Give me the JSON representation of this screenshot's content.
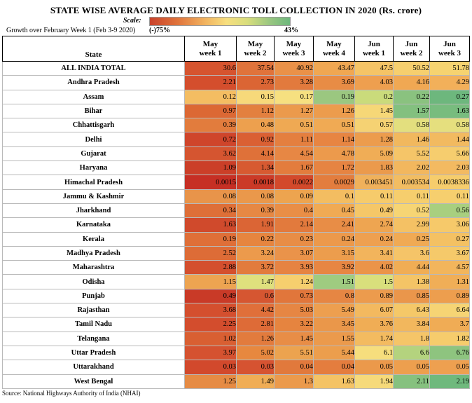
{
  "title": "STATE WISE AVERAGE DAILY ELECTRONIC TOLL COLLECTION IN 2020 (Rs. crore)",
  "scale": {
    "label": "Scale:",
    "growth_label": "Growth over February Week 1 (Feb 3-9 2020)",
    "min_label": "(-)75%",
    "max_label": "43%",
    "colors": {
      "low": "#c9422b",
      "mid": "#f7df7f",
      "high": "#6db77d"
    }
  },
  "table": {
    "state_header": "State",
    "columns": [
      {
        "line1": "May",
        "line2": "week 1"
      },
      {
        "line1": "May",
        "line2": "week 2"
      },
      {
        "line1": "May",
        "line2": "week 3"
      },
      {
        "line1": "May",
        "line2": "week  4"
      },
      {
        "line1": "Jun",
        "line2": "week 1"
      },
      {
        "line1": "Jun",
        "line2": "week 2"
      },
      {
        "line1": "Jun",
        "line2": "week 3"
      }
    ],
    "rows": [
      {
        "state": "ALL INDIA TOTAL",
        "values": [
          "30.6",
          "37.54",
          "40.92",
          "43.47",
          "47.5",
          "50.52",
          "51.78"
        ],
        "colors": [
          "#d6542f",
          "#e0733b",
          "#ea9148",
          "#f0a752",
          "#f5c466",
          "#f6cf6e",
          "#f6d370"
        ]
      },
      {
        "state": "Andhra Pradesh",
        "values": [
          "2.21",
          "2.73",
          "3.28",
          "3.69",
          "4.03",
          "4.16",
          "4.29"
        ],
        "colors": [
          "#d44e2d",
          "#db6534",
          "#e27a3d",
          "#e88c45",
          "#ee9f4f",
          "#f0a853",
          "#f2b05a"
        ]
      },
      {
        "state": "Assam",
        "values": [
          "0.12",
          "0.15",
          "0.17",
          "0.19",
          "0.2",
          "0.22",
          "0.27"
        ],
        "colors": [
          "#f4bd62",
          "#f7d97a",
          "#f6e080",
          "#9bc780",
          "#cadb7b",
          "#8ac27f",
          "#6db77d"
        ]
      },
      {
        "state": "Bihar",
        "values": [
          "0.97",
          "1.12",
          "1.27",
          "1.26",
          "1.45",
          "1.57",
          "1.63"
        ],
        "colors": [
          "#dc6834",
          "#e3803f",
          "#eb9a4c",
          "#ec9c4d",
          "#f6d777",
          "#83c07f",
          "#78bc7e"
        ]
      },
      {
        "state": "Chhattisgarh",
        "values": [
          "0.39",
          "0.48",
          "0.51",
          "0.51",
          "0.57",
          "0.58",
          "0.58"
        ],
        "colors": [
          "#e27c3d",
          "#eda04e",
          "#efa953",
          "#f0aa54",
          "#f5d273",
          "#e3df7e",
          "#e5df7e"
        ]
      },
      {
        "state": "Delhi",
        "values": [
          "0.72",
          "0.92",
          "1.11",
          "1.14",
          "1.28",
          "1.46",
          "1.44"
        ],
        "colors": [
          "#cf452b",
          "#da6033",
          "#e47f3f",
          "#e78542",
          "#ec9c4d",
          "#f1b85e",
          "#f2ba60"
        ]
      },
      {
        "state": "Gujarat",
        "values": [
          "3.62",
          "4.14",
          "4.54",
          "4.78",
          "5.09",
          "5.52",
          "5.66"
        ],
        "colors": [
          "#d55530",
          "#df7139",
          "#e78744",
          "#ec9a4c",
          "#f0ad56",
          "#f5c568",
          "#f6cd6e"
        ]
      },
      {
        "state": "Haryana",
        "values": [
          "1.09",
          "1.34",
          "1.67",
          "1.72",
          "1.83",
          "2.02",
          "2.03"
        ],
        "colors": [
          "#cb3f28",
          "#d75a31",
          "#e37c3d",
          "#e68442",
          "#eb9a4c",
          "#f2b75e",
          "#f3ba61"
        ]
      },
      {
        "state": "Himachal Pradesh",
        "values": [
          "0.0015",
          "0.0018",
          "0.0022",
          "0.0029",
          "0.003451",
          "0.003534",
          "0.0038336"
        ],
        "colors": [
          "#c62f24",
          "#cb3a27",
          "#d3492b",
          "#e37d3e",
          "#f0b15b",
          "#f2bd62",
          "#f6cd6c"
        ]
      },
      {
        "state": "Jammu & Kashmir",
        "values": [
          "0.08",
          "0.08",
          "0.09",
          "0.1",
          "0.11",
          "0.11",
          "0.11"
        ],
        "colors": [
          "#e8944a",
          "#ea984b",
          "#eda44f",
          "#f3bd61",
          "#f6cb6b",
          "#f6ce6d",
          "#f6cf6e"
        ]
      },
      {
        "state": "Jharkhand",
        "values": [
          "0.34",
          "0.39",
          "0.4",
          "0.45",
          "0.49",
          "0.52",
          "0.56"
        ],
        "colors": [
          "#de6f38",
          "#e68844",
          "#e98e46",
          "#f0aa54",
          "#f5c768",
          "#f6d574",
          "#a8cf7f"
        ]
      },
      {
        "state": "Karnataka",
        "values": [
          "1.63",
          "1.91",
          "2.14",
          "2.41",
          "2.74",
          "2.99",
          "3.06"
        ],
        "colors": [
          "#d04a2c",
          "#db6535",
          "#e27a3d",
          "#e88d46",
          "#eea551",
          "#f4c164",
          "#f6c96a"
        ]
      },
      {
        "state": "Kerala",
        "values": [
          "0.19",
          "0.22",
          "0.23",
          "0.24",
          "0.24",
          "0.25",
          "0.27"
        ],
        "colors": [
          "#df6f38",
          "#e6853f",
          "#e88d46",
          "#ec994b",
          "#eea050",
          "#f0aa54",
          "#f4c163"
        ]
      },
      {
        "state": "Madhya Pradesh",
        "values": [
          "2.52",
          "3.24",
          "3.07",
          "3.15",
          "3.41",
          "3.6",
          "3.67"
        ],
        "colors": [
          "#dd6c37",
          "#ec9a4c",
          "#ea934a",
          "#ec9d4d",
          "#f2b45c",
          "#f5c468",
          "#f5c96a"
        ]
      },
      {
        "state": "Maharashtra",
        "values": [
          "2.88",
          "3.72",
          "3.93",
          "3.92",
          "4.02",
          "4.44",
          "4.57"
        ],
        "colors": [
          "#d44f2e",
          "#e27b3d",
          "#e68342",
          "#e78643",
          "#eb9449",
          "#f0ad55",
          "#f2b55c"
        ]
      },
      {
        "state": "Odisha",
        "values": [
          "1.15",
          "1.47",
          "1.24",
          "1.51",
          "1.5",
          "1.38",
          "1.31"
        ],
        "colors": [
          "#eda451",
          "#dfe07d",
          "#f6cf6e",
          "#9fcb80",
          "#d9df7c",
          "#f4c466",
          "#f0ae57"
        ]
      },
      {
        "state": "Punjab",
        "values": [
          "0.49",
          "0.6",
          "0.73",
          "0.8",
          "0.89",
          "0.85",
          "0.89"
        ],
        "colors": [
          "#c93a27",
          "#d65631",
          "#e1763b",
          "#e68643",
          "#ec9b4d",
          "#ea964b",
          "#ed9e4e"
        ]
      },
      {
        "state": "Rajasthan",
        "values": [
          "3.68",
          "4.42",
          "5.03",
          "5.49",
          "6.07",
          "6.43",
          "6.64"
        ],
        "colors": [
          "#d44f2e",
          "#e06f3a",
          "#e68643",
          "#ed9f4f",
          "#f3b95f",
          "#f5c868",
          "#f6d474"
        ]
      },
      {
        "state": "Tamil Nadu",
        "values": [
          "2.25",
          "2.81",
          "3.22",
          "3.45",
          "3.76",
          "3.84",
          "3.7"
        ],
        "colors": [
          "#d34d2d",
          "#de6b37",
          "#e6843f",
          "#ea974a",
          "#f0ad55",
          "#f2b75d",
          "#f0ac55"
        ]
      },
      {
        "state": "Telangana",
        "values": [
          "1.02",
          "1.26",
          "1.45",
          "1.55",
          "1.74",
          "1.8",
          "1.82"
        ],
        "colors": [
          "#d95f32",
          "#e27b3d",
          "#e88d46",
          "#eb9a4c",
          "#f3bb60",
          "#f5c568",
          "#f6cc6c"
        ]
      },
      {
        "state": "Uttar Pradesh",
        "values": [
          "3.97",
          "5.02",
          "5.51",
          "5.44",
          "6.1",
          "6.6",
          "6.76"
        ],
        "colors": [
          "#d55230",
          "#e7883f",
          "#eca34f",
          "#ec9e4d",
          "#f6de7d",
          "#b4d37e",
          "#8ec47f"
        ]
      },
      {
        "state": "Uttarakhand",
        "values": [
          "0.03",
          "0.03",
          "0.04",
          "0.04",
          "0.05",
          "0.05",
          "0.05"
        ],
        "colors": [
          "#d2492c",
          "#d65331",
          "#e1793c",
          "#e47d3e",
          "#eb994b",
          "#ed9f4e",
          "#eea050"
        ]
      },
      {
        "state": "West Bengal",
        "values": [
          "1.25",
          "1.49",
          "1.3",
          "1.63",
          "1.94",
          "2.11",
          "2.19"
        ],
        "colors": [
          "#e68b44",
          "#f0ad55",
          "#eb9a4c",
          "#f4c365",
          "#f6da7a",
          "#86c17f",
          "#6fb97d"
        ]
      }
    ]
  },
  "source": "Source: National Highways Authority of India (NHAI)"
}
